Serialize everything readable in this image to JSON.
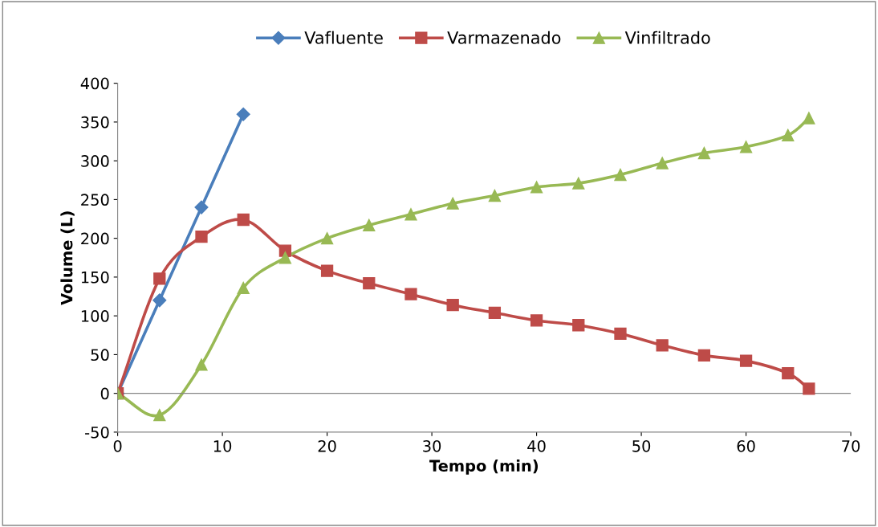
{
  "chart_data": {
    "type": "line",
    "xlabel": "Tempo (min)",
    "ylabel": "Volume (L)",
    "xlim": [
      0,
      70
    ],
    "xticks": [
      0,
      10,
      20,
      30,
      40,
      50,
      60,
      70
    ],
    "ylim": [
      -50,
      400
    ],
    "yticks": [
      -50,
      0,
      50,
      100,
      150,
      200,
      250,
      300,
      350,
      400
    ],
    "grid": false,
    "ref_lines": [
      {
        "axis": "y",
        "value": 0,
        "color": "#868686"
      }
    ],
    "legend": "top",
    "line_style": "solid",
    "series": [
      {
        "name": "Vafluente",
        "color": "#4a7ebb",
        "marker": "diamond",
        "x": [
          0,
          4,
          8,
          12
        ],
        "values": [
          0,
          120,
          240,
          360
        ]
      },
      {
        "name": "Varmazenado",
        "color": "#be4b48",
        "marker": "square",
        "x": [
          0,
          4,
          8,
          12,
          16,
          20,
          24,
          28,
          32,
          36,
          40,
          44,
          48,
          52,
          56,
          60,
          64,
          66
        ],
        "values": [
          0,
          148,
          202,
          224,
          184,
          158,
          142,
          128,
          114,
          104,
          94,
          88,
          77,
          62,
          49,
          42,
          26,
          6
        ]
      },
      {
        "name": "Vinfiltrado",
        "color": "#98b954",
        "marker": "triangle",
        "x": [
          0,
          4,
          8,
          12,
          16,
          20,
          24,
          28,
          32,
          36,
          40,
          44,
          48,
          52,
          56,
          60,
          64,
          66
        ],
        "values": [
          0,
          -28,
          37,
          136,
          175,
          200,
          217,
          231,
          245,
          255,
          266,
          271,
          282,
          297,
          310,
          318,
          333,
          355
        ]
      }
    ]
  }
}
